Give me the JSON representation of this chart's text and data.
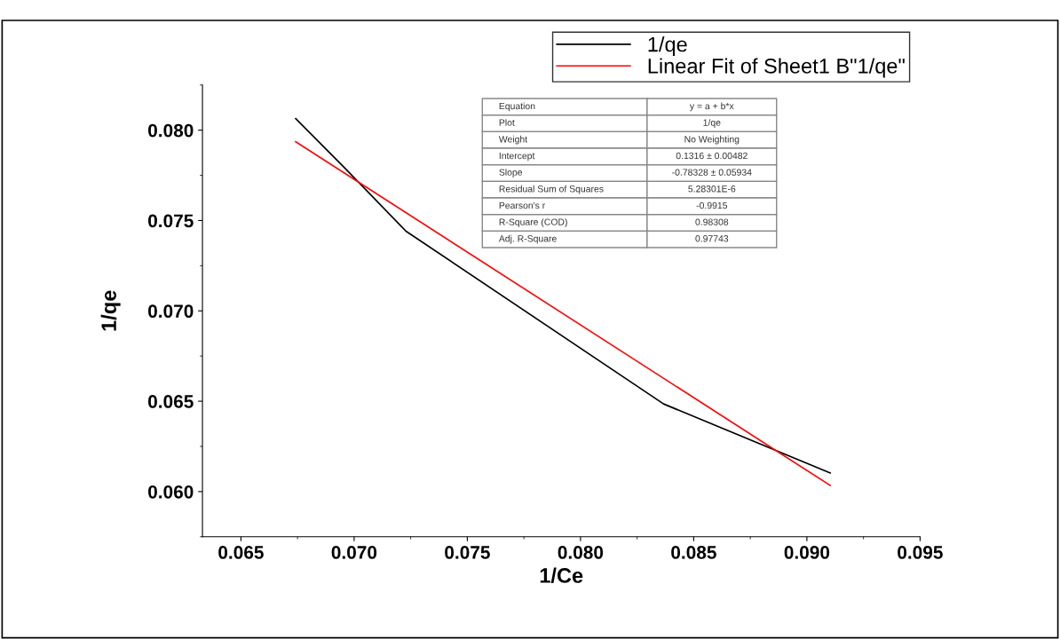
{
  "chart_data": {
    "type": "line",
    "xlabel": "1/Ce",
    "ylabel": "1/qe",
    "series": [
      {
        "name": "1/qe",
        "color": "#000000",
        "x": [
          0.06742,
          0.06956,
          0.07229,
          0.08367,
          0.09103
        ],
        "values": [
          0.08064,
          0.07794,
          0.07441,
          0.06485,
          0.06103
        ]
      },
      {
        "name": "Linear Fit of Sheet1 B\"1/qe\"",
        "color": "#ff0000",
        "x": [
          0.06742,
          0.09103
        ],
        "values": [
          0.07936,
          0.06034
        ]
      }
    ],
    "xlim": [
      0.0633,
      0.095
    ],
    "xticks": [
      0.065,
      {
        "value": 0.07,
        "label": "0.070"
      },
      0.075,
      {
        "value": 0.08,
        "label": "0.080"
      },
      0.085,
      {
        "value": 0.09,
        "label": "0.090"
      },
      0.095
    ],
    "ylim": [
      0.0575,
      0.0825
    ],
    "yticks": [
      {
        "value": 0.06,
        "label": "0.060"
      },
      0.065,
      {
        "value": 0.07,
        "label": "0.070"
      },
      0.075,
      {
        "value": 0.08,
        "label": "0.080"
      }
    ],
    "legend": "top right",
    "grid": false,
    "marker": "none",
    "line_style": "solid",
    "annotations": [
      "Equation",
      "y = a + b*x",
      "Plot",
      "1/qe",
      "Weight",
      "No Weighting",
      "Intercept",
      "0.1316 ± 0.00482",
      "Slope",
      "-0.78328 ± 0.05934",
      "Residual Sum of Squares",
      "5.28301E-6",
      "Pearson's r",
      "-0.9915",
      "R-Square (COD)",
      "0.98308",
      "Adj. R-Square",
      "0.97743"
    ]
  }
}
